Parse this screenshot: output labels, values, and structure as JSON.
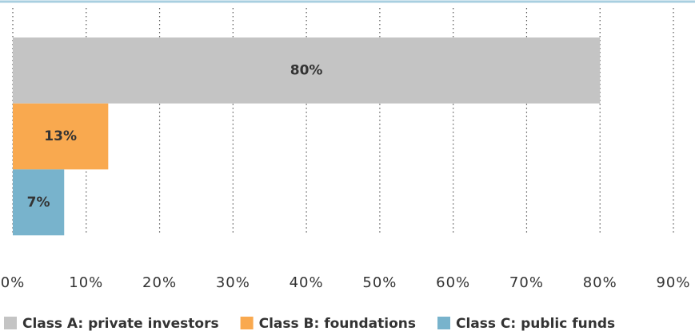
{
  "chart_data": {
    "type": "bar",
    "orientation": "horizontal",
    "series": [
      {
        "name": "Class A: private investors",
        "color": "#c4c4c4",
        "values": [
          80
        ],
        "value_labels": [
          "80%"
        ]
      },
      {
        "name": "Class B: foundations",
        "color": "#f9a94f",
        "values": [
          13
        ],
        "value_labels": [
          "13%"
        ]
      },
      {
        "name": "Class C: public funds",
        "color": "#78b3cc",
        "values": [
          7
        ],
        "value_labels": [
          "7%"
        ]
      }
    ],
    "xlim": [
      0,
      90
    ],
    "xticks": [
      {
        "value": 0,
        "label": "0%"
      },
      {
        "value": 10,
        "label": "10%"
      },
      {
        "value": 20,
        "label": "20%"
      },
      {
        "value": 30,
        "label": "30%"
      },
      {
        "value": 40,
        "label": "40%"
      },
      {
        "value": 50,
        "label": "50%"
      },
      {
        "value": 60,
        "label": "60%"
      },
      {
        "value": 70,
        "label": "70%"
      },
      {
        "value": 80,
        "label": "80%"
      },
      {
        "value": 90,
        "label": "90%"
      }
    ],
    "grid": true,
    "legend": "bottom"
  }
}
